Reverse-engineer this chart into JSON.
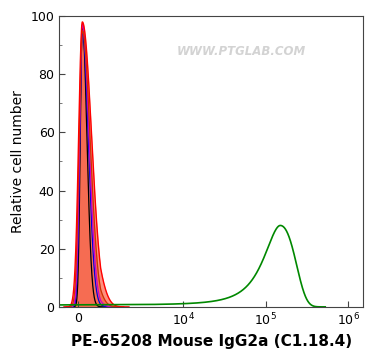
{
  "ylabel": "Relative cell number",
  "xlabel": "PE-65208 Mouse IgG2a (C1.18.4)",
  "watermark": "WWW.PTGLAB.COM",
  "ylim": [
    0,
    100
  ],
  "background_color": "#ffffff",
  "tick_label_fontsize": 9,
  "axis_label_fontsize": 10,
  "xlabel_fontsize": 11,
  "linthresh": 1000,
  "linscale": 0.25,
  "xlim_left": -800,
  "xlim_right": 1500000,
  "curves": [
    {
      "color": "#000000",
      "peak": 200,
      "peak_y": 97,
      "sl": 90,
      "sr": 200,
      "lw": 0.9,
      "fill": false
    },
    {
      "color": "#0000dd",
      "peak": 200,
      "peak_y": 95,
      "sl": 110,
      "sr": 260,
      "lw": 0.9,
      "fill": false
    },
    {
      "color": "#cc00cc",
      "peak": 200,
      "peak_y": 97,
      "sl": 120,
      "sr": 290,
      "lw": 0.9,
      "fill": false
    },
    {
      "color": "#cc3300",
      "peak": 200,
      "peak_y": 95,
      "sl": 140,
      "sr": 340,
      "lw": 0.9,
      "fill": true,
      "fill_alpha": 0.35,
      "fill_color": "#cc3300"
    },
    {
      "color": "#ff0000",
      "peak": 200,
      "peak_y": 98,
      "sl": 160,
      "sr": 400,
      "lw": 1.0,
      "fill": true,
      "fill_alpha": 0.5,
      "fill_color": "#ff2200"
    },
    {
      "color": "#008800",
      "peak": 150000,
      "peak_y": 28,
      "sl": 55000,
      "sr": 75000,
      "lw": 1.2,
      "fill": false
    }
  ],
  "xticks": [
    0,
    10000,
    100000,
    1000000
  ],
  "xticklabels": [
    "0",
    "10$^4$",
    "10$^5$",
    "10$^6$"
  ],
  "yticks": [
    0,
    20,
    40,
    60,
    80,
    100
  ],
  "yticklabels": [
    "0",
    "20",
    "40",
    "60",
    "80",
    "100"
  ]
}
